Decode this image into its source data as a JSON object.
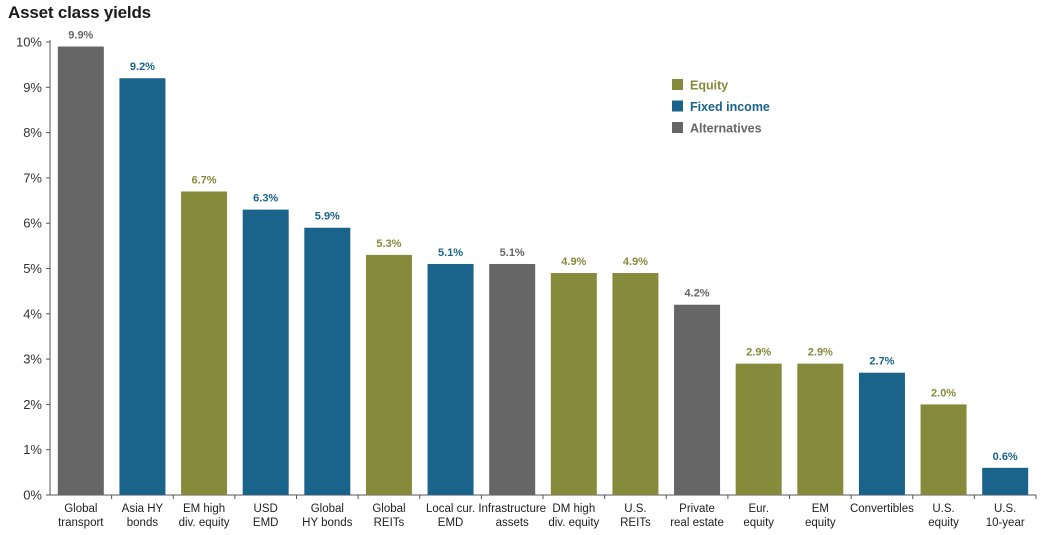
{
  "chart_data": {
    "type": "bar",
    "title": "Asset class yields",
    "xlabel": "",
    "ylabel": "",
    "ylim": [
      0,
      10
    ],
    "yticks": [
      "0%",
      "1%",
      "2%",
      "3%",
      "4%",
      "5%",
      "6%",
      "7%",
      "8%",
      "9%",
      "10%"
    ],
    "grid": false,
    "legend_position": "top-right",
    "colors": {
      "Equity": "#868b3c",
      "Fixed income": "#1a648c",
      "Alternatives": "#666666"
    },
    "legend": [
      "Equity",
      "Fixed income",
      "Alternatives"
    ],
    "categories": [
      [
        "Global",
        "transport"
      ],
      [
        "Asia HY",
        "bonds"
      ],
      [
        "EM high",
        "div. equity"
      ],
      [
        "USD",
        "EMD"
      ],
      [
        "Global",
        "HY bonds"
      ],
      [
        "Global",
        "REITs"
      ],
      [
        "Local cur.",
        "EMD"
      ],
      [
        "Infrastructure",
        "assets"
      ],
      [
        "DM high",
        "div. equity"
      ],
      [
        "U.S.",
        "REITs"
      ],
      [
        "Private",
        "real estate"
      ],
      [
        "Eur.",
        "equity"
      ],
      [
        "EM",
        "equity"
      ],
      [
        "Convertibles"
      ],
      [
        "U.S.",
        "equity"
      ],
      [
        "U.S.",
        "10-year"
      ]
    ],
    "values": [
      9.9,
      9.2,
      6.7,
      6.3,
      5.9,
      5.3,
      5.1,
      5.1,
      4.9,
      4.9,
      4.2,
      2.9,
      2.9,
      2.7,
      2.0,
      0.6
    ],
    "labels": [
      "9.9%",
      "9.2%",
      "6.7%",
      "6.3%",
      "5.9%",
      "5.3%",
      "5.1%",
      "5.1%",
      "4.9%",
      "4.9%",
      "4.2%",
      "2.9%",
      "2.9%",
      "2.7%",
      "2.0%",
      "0.6%"
    ],
    "groups": [
      "Alternatives",
      "Fixed income",
      "Equity",
      "Fixed income",
      "Fixed income",
      "Equity",
      "Fixed income",
      "Alternatives",
      "Equity",
      "Equity",
      "Alternatives",
      "Equity",
      "Equity",
      "Fixed income",
      "Equity",
      "Fixed income"
    ]
  }
}
